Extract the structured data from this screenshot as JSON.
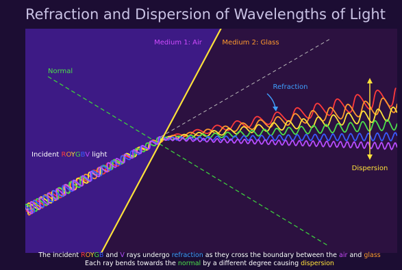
{
  "title": "Refraction and Dispersion of Wavelengths of Light",
  "labels": {
    "medium1": "Medium 1: Air",
    "medium2": "Medium 2: Glass",
    "normal": "Normal",
    "refraction": "Refraction",
    "dispersion": "Dispersion"
  },
  "incident_label": [
    {
      "text": "Incident ",
      "color": "#ffffff"
    },
    {
      "text": "R",
      "color": "#ff3b3b"
    },
    {
      "text": "O",
      "color": "#ff9a2e"
    },
    {
      "text": "Y",
      "color": "#ffe23a"
    },
    {
      "text": "G",
      "color": "#4be04b"
    },
    {
      "text": "B",
      "color": "#3a5bff"
    },
    {
      "text": "V",
      "color": "#b84dff"
    },
    {
      "text": " light",
      "color": "#ffffff"
    }
  ],
  "caption": [
    [
      {
        "text": "The incident ",
        "color": "#ffffff"
      },
      {
        "text": "R",
        "color": "#ff3b3b"
      },
      {
        "text": "O",
        "color": "#ff9a2e"
      },
      {
        "text": "Y",
        "color": "#ffe23a"
      },
      {
        "text": "G",
        "color": "#4be04b"
      },
      {
        "text": "B",
        "color": "#3a5bff"
      },
      {
        "text": " and ",
        "color": "#ffffff"
      },
      {
        "text": "V",
        "color": "#b84dff"
      },
      {
        "text": " rays undergo ",
        "color": "#ffffff"
      },
      {
        "text": "refraction",
        "color": "#3fa0ff"
      },
      {
        "text": " as they cross the boundary between the ",
        "color": "#ffffff"
      },
      {
        "text": "air",
        "color": "#d04bff"
      },
      {
        "text": " and ",
        "color": "#ffffff"
      },
      {
        "text": "glass",
        "color": "#ff9a2e"
      }
    ],
    [
      {
        "text": "Each ray bends towards the ",
        "color": "#ffffff"
      },
      {
        "text": "normal",
        "color": "#4be04b"
      },
      {
        "text": " by a different degree causing ",
        "color": "#ffffff"
      },
      {
        "text": "dispersion",
        "color": "#ffe23a"
      }
    ]
  ]
}
